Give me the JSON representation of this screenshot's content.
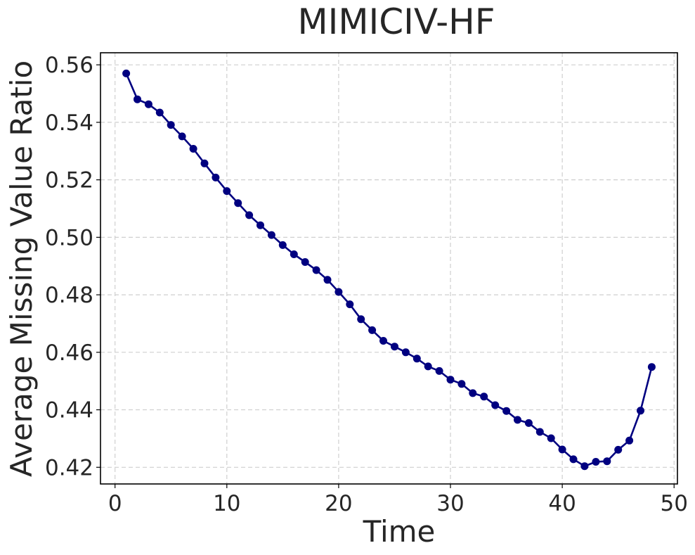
{
  "chart_data": {
    "type": "line",
    "title": "MIMICIV-HF",
    "xlabel": "Time",
    "ylabel": "Average Missing Value Ratio",
    "xlim": [
      -1.3,
      50.3
    ],
    "ylim": [
      0.4142,
      0.5642
    ],
    "xticks": [
      0,
      10,
      20,
      30,
      40,
      50
    ],
    "yticks": [
      0.42,
      0.44,
      0.46,
      0.48,
      0.5,
      0.52,
      0.54,
      0.56
    ],
    "xtick_labels": [
      "0",
      "10",
      "20",
      "30",
      "40",
      "50"
    ],
    "ytick_labels": [
      "0.42",
      "0.44",
      "0.46",
      "0.48",
      "0.50",
      "0.52",
      "0.54",
      "0.56"
    ],
    "grid": true,
    "series_color": "#000080",
    "x": [
      1,
      2,
      3,
      4,
      5,
      6,
      7,
      8,
      9,
      10,
      11,
      12,
      13,
      14,
      15,
      16,
      17,
      18,
      19,
      20,
      21,
      22,
      23,
      24,
      25,
      26,
      27,
      28,
      29,
      30,
      31,
      32,
      33,
      34,
      35,
      36,
      37,
      38,
      39,
      40,
      41,
      42,
      43,
      44,
      45,
      46,
      47,
      48
    ],
    "y": [
      0.557,
      0.548,
      0.5463,
      0.5434,
      0.5391,
      0.5351,
      0.5308,
      0.5257,
      0.5208,
      0.5161,
      0.5119,
      0.5077,
      0.5042,
      0.5008,
      0.4973,
      0.4941,
      0.4914,
      0.4886,
      0.4852,
      0.481,
      0.4767,
      0.4715,
      0.4677,
      0.464,
      0.462,
      0.46,
      0.4578,
      0.4551,
      0.4535,
      0.4505,
      0.449,
      0.4458,
      0.4446,
      0.4416,
      0.4396,
      0.4365,
      0.4354,
      0.4323,
      0.4301,
      0.4262,
      0.4228,
      0.4204,
      0.4219,
      0.4221,
      0.4261,
      0.4293,
      0.4397,
      0.4549
    ]
  }
}
